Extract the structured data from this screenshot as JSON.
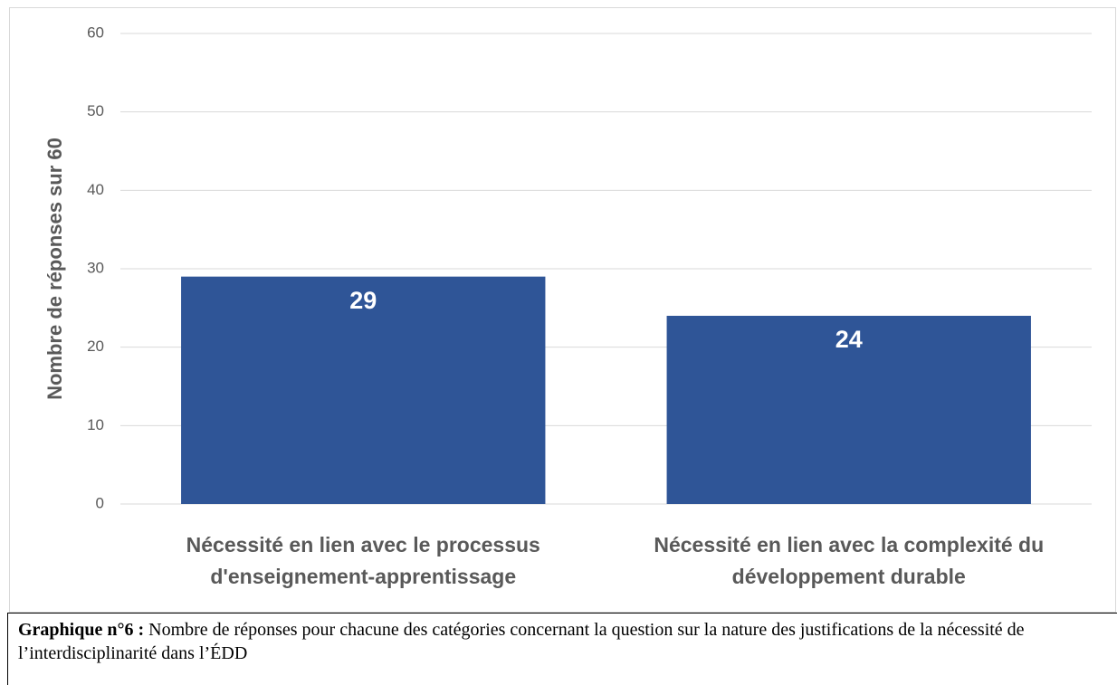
{
  "chart_data": {
    "type": "bar",
    "ylabel": "Nombre de réponses sur 60",
    "categories": [
      "Nécessité en lien avec le processus d'enseignement-apprentissage",
      "Nécessité en lien avec la complexité du développement durable"
    ],
    "values": [
      29,
      24
    ],
    "color": "#2f5597",
    "ylim": [
      0,
      60
    ],
    "yticks": [
      0,
      10,
      20,
      30,
      40,
      50,
      60
    ],
    "grid": true
  },
  "caption": {
    "label": "Graphique n°6 :",
    "text": "Nombre de réponses pour chacune des catégories concernant la question sur la nature des justifications de la nécessité de l’interdisciplinarité dans l’ÉDD"
  }
}
